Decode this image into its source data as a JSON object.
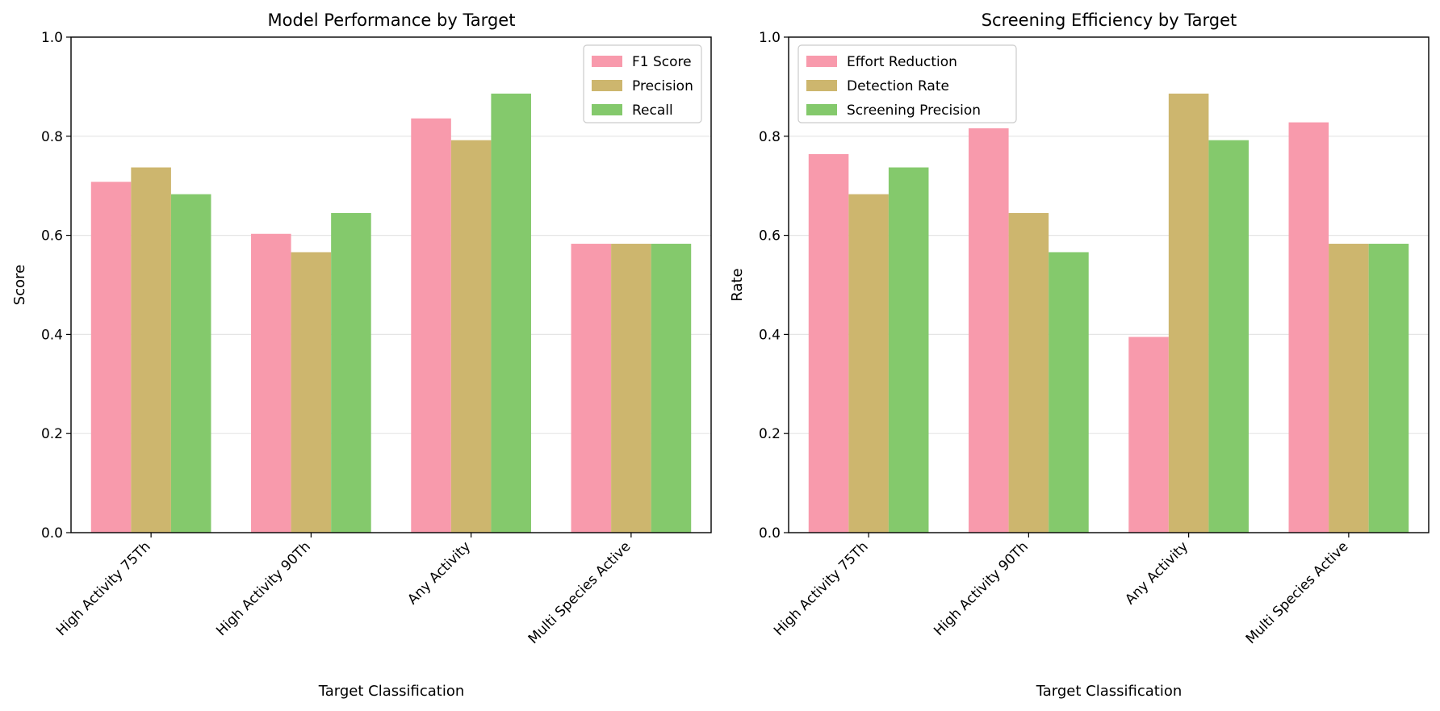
{
  "colors": {
    "f1": "#f89aac",
    "precision": "#cdb66e",
    "recall": "#84c96c",
    "grid": "#e5e5e5",
    "axis": "#000000"
  },
  "chart_data": [
    {
      "type": "bar",
      "title": "Model Performance by Target",
      "xlabel": "Target Classification",
      "ylabel": "Score",
      "ylim": [
        0,
        1.0
      ],
      "yticks": [
        "0.0",
        "0.2",
        "0.4",
        "0.6",
        "0.8",
        "1.0"
      ],
      "grid": "horizontal",
      "legend_position": "top-right",
      "categories": [
        "High Activity 75Th",
        "High Activity 90Th",
        "Any Activity",
        "Multi Species Active"
      ],
      "series": [
        {
          "name": "F1 Score",
          "values": [
            0.708,
            0.603,
            0.836,
            0.583
          ]
        },
        {
          "name": "Precision",
          "values": [
            0.737,
            0.566,
            0.792,
            0.583
          ]
        },
        {
          "name": "Recall",
          "values": [
            0.683,
            0.645,
            0.886,
            0.583
          ]
        }
      ]
    },
    {
      "type": "bar",
      "title": "Screening Efficiency by Target",
      "xlabel": "Target Classification",
      "ylabel": "Rate",
      "ylim": [
        0,
        1.0
      ],
      "yticks": [
        "0.0",
        "0.2",
        "0.4",
        "0.6",
        "0.8",
        "1.0"
      ],
      "grid": "horizontal",
      "legend_position": "top-left",
      "categories": [
        "High Activity 75Th",
        "High Activity 90Th",
        "Any Activity",
        "Multi Species Active"
      ],
      "series": [
        {
          "name": "Effort Reduction",
          "values": [
            0.764,
            0.816,
            0.395,
            0.828
          ]
        },
        {
          "name": "Detection Rate",
          "values": [
            0.683,
            0.645,
            0.886,
            0.583
          ]
        },
        {
          "name": "Screening Precision",
          "values": [
            0.737,
            0.566,
            0.792,
            0.583
          ]
        }
      ]
    }
  ]
}
